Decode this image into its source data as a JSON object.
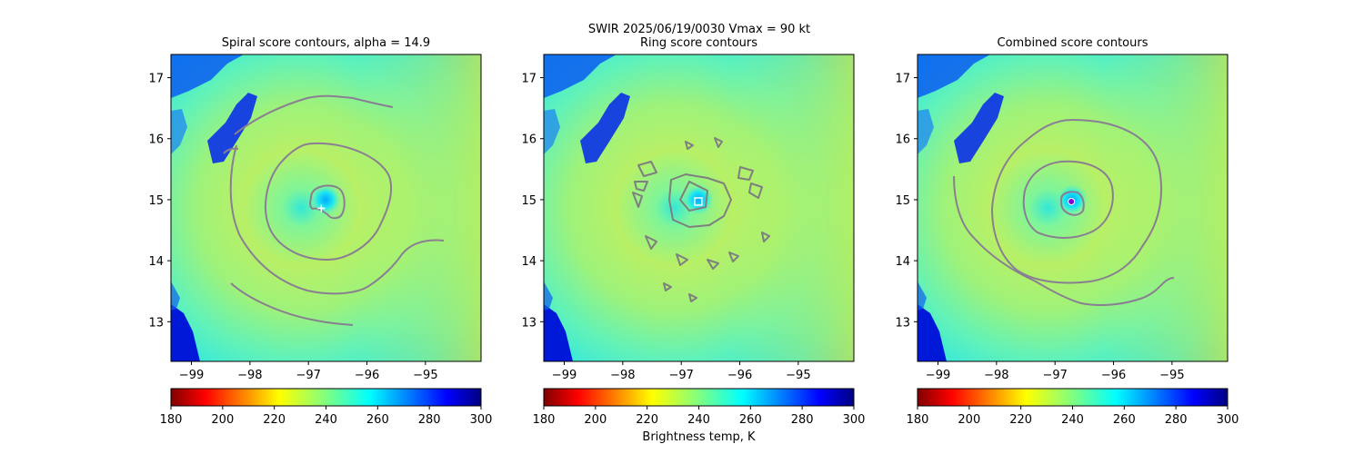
{
  "suptitle_line1": "SWIR  2025/06/19/0030    Vmax = 90 kt",
  "colorbar": {
    "label": "Brightness temp, K",
    "ticks": [
      180,
      200,
      220,
      240,
      260,
      280,
      300
    ],
    "range": [
      180,
      300
    ],
    "colormap": "jet_r"
  },
  "chart_data": [
    {
      "type": "heatmap",
      "title": "Spiral score contours, alpha = 14.9",
      "xlim": [
        -99.35,
        -94.05
      ],
      "ylim": [
        12.35,
        17.38
      ],
      "xticks": [
        -99,
        -98,
        -97,
        -96,
        -95
      ],
      "yticks": [
        13,
        14,
        15,
        16,
        17
      ],
      "grid": false,
      "contour_color": "#8a7f92",
      "marker": {
        "shape": "plus",
        "color": "#ffffff",
        "x": -96.78,
        "y": 14.86
      }
    },
    {
      "type": "heatmap",
      "title": "Ring score contours",
      "xlim": [
        -99.35,
        -94.05
      ],
      "ylim": [
        12.35,
        17.38
      ],
      "xticks": [
        -99,
        -98,
        -97,
        -96,
        -95
      ],
      "yticks": [
        13,
        14,
        15,
        16,
        17
      ],
      "grid": false,
      "contour_color": "#7f7f7f",
      "marker": {
        "shape": "square",
        "color": "#ffffff",
        "x": -96.71,
        "y": 14.97
      }
    },
    {
      "type": "heatmap",
      "title": "Combined score contours",
      "xlim": [
        -99.35,
        -94.05
      ],
      "ylim": [
        12.35,
        17.38
      ],
      "xticks": [
        -99,
        -98,
        -97,
        -96,
        -95
      ],
      "yticks": [
        13,
        14,
        15,
        16,
        17
      ],
      "grid": false,
      "contour_color": "#8a7f92",
      "marker": {
        "shape": "circle",
        "color": "#8a00d4",
        "x": -96.72,
        "y": 14.97
      }
    }
  ]
}
